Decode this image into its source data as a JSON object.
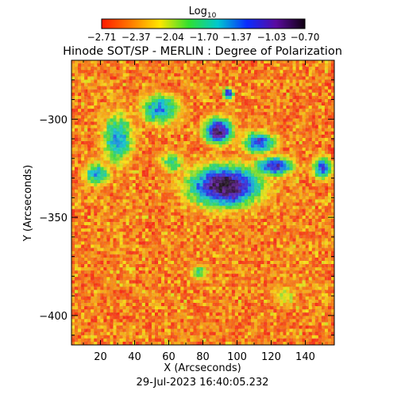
{
  "chart_data": {
    "type": "heatmap",
    "title": "Hinode SOT/SP - MERLIN : Degree of Polarization",
    "footer_timestamp": "29-Jul-2023 16:40:05.232",
    "xlabel": "X (Arcseconds)",
    "ylabel": "Y (Arcseconds)",
    "xlim": [
      3,
      157
    ],
    "ylim": [
      -415,
      -270
    ],
    "x_ticks": [
      20,
      40,
      60,
      80,
      100,
      120,
      140
    ],
    "y_ticks": [
      -300,
      -350,
      -400
    ],
    "x_tick_labels": [
      "20",
      "40",
      "60",
      "80",
      "100",
      "120",
      "140"
    ],
    "y_tick_labels": [
      "−300",
      "−350",
      "−400"
    ],
    "colorbar": {
      "title_base": "Log",
      "title_sub": "10",
      "range": [
        -2.71,
        -0.7
      ],
      "tick_values": [
        -2.71,
        -2.37,
        -2.04,
        -1.7,
        -1.37,
        -1.03,
        -0.7
      ],
      "tick_labels": [
        "−2.71",
        "−2.37",
        "−2.04",
        "−1.70",
        "−1.37",
        "−1.03",
        "−0.70"
      ],
      "colors": [
        "#ff1a00",
        "#ff7a00",
        "#ffe600",
        "#30e030",
        "#00c8d0",
        "#0a2cff",
        "#5a0aa0",
        "#100010"
      ]
    },
    "features": [
      {
        "x": 93,
        "y": -334,
        "rx": 22,
        "ry": 11,
        "value": -0.72
      },
      {
        "x": 89,
        "y": -306,
        "rx": 9,
        "ry": 7,
        "value": -0.85
      },
      {
        "x": 95,
        "y": -287,
        "rx": 3,
        "ry": 3,
        "value": -0.9
      },
      {
        "x": 122,
        "y": -324,
        "rx": 12,
        "ry": 5,
        "value": -1.05
      },
      {
        "x": 113,
        "y": -312,
        "rx": 10,
        "ry": 6,
        "value": -1.2
      },
      {
        "x": 55,
        "y": -295,
        "rx": 12,
        "ry": 8,
        "value": -1.35
      },
      {
        "x": 30,
        "y": -310,
        "rx": 10,
        "ry": 14,
        "value": -1.45
      },
      {
        "x": 18,
        "y": -328,
        "rx": 8,
        "ry": 6,
        "value": -1.4
      },
      {
        "x": 150,
        "y": -325,
        "rx": 6,
        "ry": 6,
        "value": -1.25
      },
      {
        "x": 62,
        "y": -322,
        "rx": 8,
        "ry": 6,
        "value": -1.7
      },
      {
        "x": 78,
        "y": -378,
        "rx": 6,
        "ry": 5,
        "value": -1.8
      },
      {
        "x": 128,
        "y": -390,
        "rx": 8,
        "ry": 6,
        "value": -2.0
      }
    ]
  }
}
